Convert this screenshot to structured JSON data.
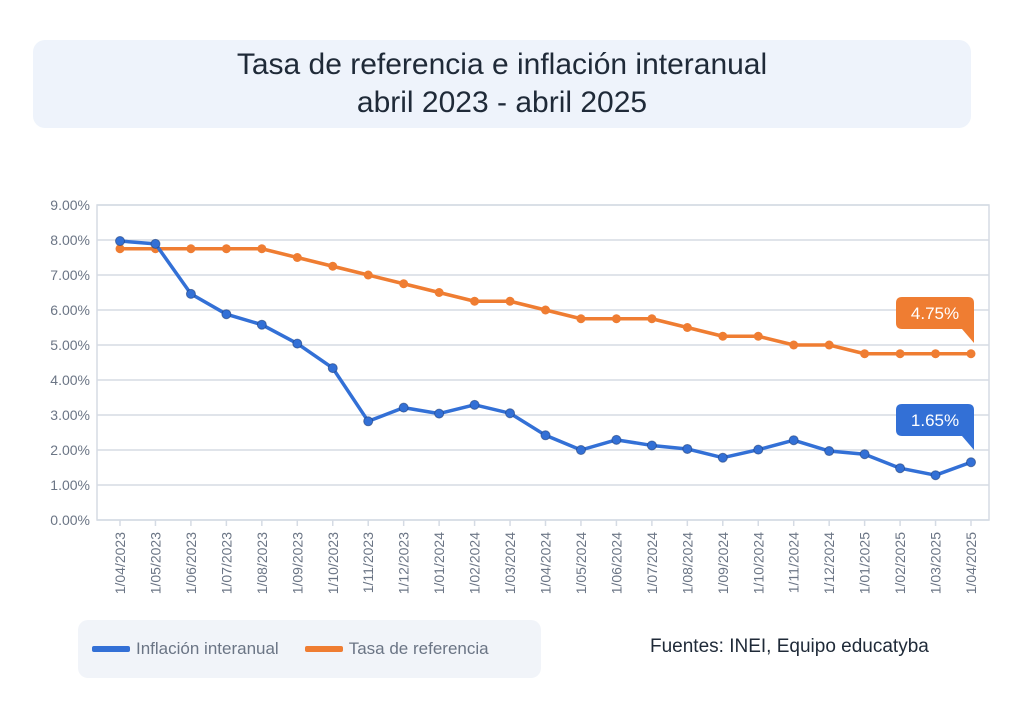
{
  "title": {
    "line1": "Tasa de referencia e inflación interanual",
    "line2": "abril 2023 - abril 2025"
  },
  "source": "Fuentes: INEI, Equipo educatyba",
  "colors": {
    "inflacion": "#3370d6",
    "tasa": "#ef7d32",
    "grid": "#d5dbe4",
    "axis_text": "#6b7585"
  },
  "chart_data": {
    "type": "line",
    "x": [
      "1/04/2023",
      "1/05/2023",
      "1/06/2023",
      "1/07/2023",
      "1/08/2023",
      "1/09/2023",
      "1/10/2023",
      "1/11/2023",
      "1/12/2023",
      "1/01/2024",
      "1/02/2024",
      "1/03/2024",
      "1/04/2024",
      "1/05/2024",
      "1/06/2024",
      "1/07/2024",
      "1/08/2024",
      "1/09/2024",
      "1/10/2024",
      "1/11/2024",
      "1/12/2024",
      "1/01/2025",
      "1/02/2025",
      "1/03/2025",
      "1/04/2025"
    ],
    "series": [
      {
        "name": "Inflación interanual",
        "color": "#3370d6",
        "values": [
          7.97,
          7.89,
          6.46,
          5.88,
          5.58,
          5.04,
          4.34,
          2.82,
          3.21,
          3.04,
          3.29,
          3.05,
          2.42,
          2.0,
          2.29,
          2.13,
          2.03,
          1.78,
          2.01,
          2.28,
          1.97,
          1.88,
          1.48,
          1.28,
          1.65
        ],
        "end_label": "1.65%"
      },
      {
        "name": "Tasa de referencia",
        "color": "#ef7d32",
        "values": [
          7.75,
          7.75,
          7.75,
          7.75,
          7.75,
          7.5,
          7.25,
          7.0,
          6.75,
          6.5,
          6.25,
          6.25,
          6.0,
          5.75,
          5.75,
          5.75,
          5.5,
          5.25,
          5.25,
          5.0,
          5.0,
          4.75,
          4.75,
          4.75,
          4.75
        ],
        "end_label": "4.75%"
      }
    ],
    "y_ticks": [
      "9.00%",
      "8.00%",
      "7.00%",
      "6.00%",
      "5.00%",
      "4.00%",
      "3.00%",
      "2.00%",
      "1.00%",
      "0.00%"
    ],
    "ylim": [
      0,
      9
    ],
    "grid": true,
    "legend_position": "bottom-left"
  }
}
